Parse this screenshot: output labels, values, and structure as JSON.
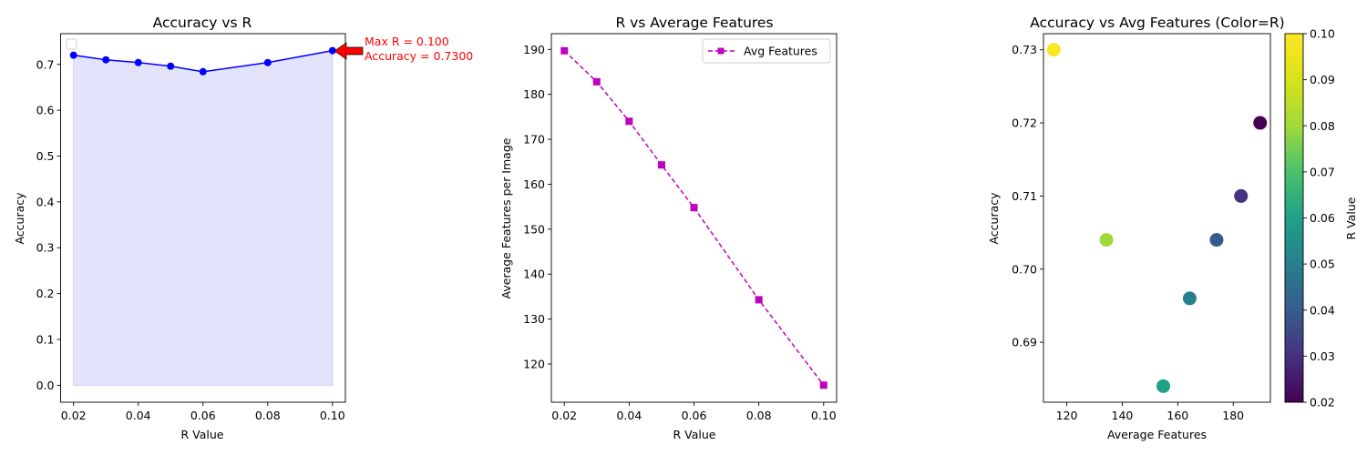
{
  "chart_data": [
    {
      "type": "line",
      "title": "Accuracy vs R",
      "xlabel": "R Value",
      "ylabel": "Accuracy",
      "xlim": [
        0.016,
        0.104
      ],
      "ylim": [
        -0.037,
        0.767
      ],
      "xticks": [
        0.02,
        0.04,
        0.06,
        0.08,
        0.1
      ],
      "xtick_labels": [
        "0.02",
        "0.04",
        "0.06",
        "0.08",
        "0.10"
      ],
      "yticks": [
        0.0,
        0.1,
        0.2,
        0.3,
        0.4,
        0.5,
        0.6,
        0.7
      ],
      "ytick_labels": [
        "0.0",
        "0.1",
        "0.2",
        "0.3",
        "0.4",
        "0.5",
        "0.6",
        "0.7"
      ],
      "x": [
        0.02,
        0.03,
        0.04,
        0.05,
        0.06,
        0.08,
        0.1
      ],
      "y": [
        0.72,
        0.71,
        0.704,
        0.696,
        0.684,
        0.704,
        0.73
      ],
      "fill_under": true,
      "line_color": "#0000ff",
      "fill_color": "#e3e3fc",
      "legend": "top-left (empty)",
      "annotation": {
        "lines": [
          "Max R = 0.100",
          "Accuracy = 0.7300"
        ],
        "point_x": 0.1,
        "point_y": 0.73,
        "color": "#ff0000"
      },
      "grid": false
    },
    {
      "type": "line",
      "title": "R vs Average Features",
      "xlabel": "R Value",
      "ylabel": "Average Features per Image",
      "xlim": [
        0.016,
        0.104
      ],
      "ylim": [
        111.5,
        193.5
      ],
      "xticks": [
        0.02,
        0.04,
        0.06,
        0.08,
        0.1
      ],
      "xtick_labels": [
        "0.02",
        "0.04",
        "0.06",
        "0.08",
        "0.10"
      ],
      "yticks": [
        120,
        130,
        140,
        150,
        160,
        170,
        180,
        190
      ],
      "ytick_labels": [
        "120",
        "130",
        "140",
        "150",
        "160",
        "170",
        "180",
        "190"
      ],
      "series": [
        {
          "name": "Avg Features",
          "x": [
            0.02,
            0.03,
            0.04,
            0.05,
            0.06,
            0.08,
            0.1
          ],
          "y": [
            189.7,
            182.8,
            174.0,
            164.3,
            154.8,
            134.3,
            115.3
          ],
          "color": "#bf00bf",
          "style": "dashed",
          "marker": "square"
        }
      ],
      "legend": "top-right",
      "grid": false
    },
    {
      "type": "scatter",
      "title": "Accuracy vs Avg Features (Color=R)",
      "xlabel": "Average Features",
      "ylabel": "Accuracy",
      "xlim": [
        111.6,
        193.4
      ],
      "ylim": [
        0.6818,
        0.7322
      ],
      "xticks": [
        120,
        140,
        160,
        180
      ],
      "xtick_labels": [
        "120",
        "140",
        "160",
        "180"
      ],
      "yticks": [
        0.69,
        0.7,
        0.71,
        0.72,
        0.73
      ],
      "ytick_labels": [
        "0.69",
        "0.70",
        "0.71",
        "0.72",
        "0.73"
      ],
      "x": [
        189.7,
        182.8,
        174.0,
        164.3,
        154.8,
        134.3,
        115.3
      ],
      "y": [
        0.72,
        0.71,
        0.704,
        0.696,
        0.684,
        0.704,
        0.73
      ],
      "c": [
        0.02,
        0.03,
        0.04,
        0.05,
        0.06,
        0.08,
        0.1
      ],
      "colormap": "viridis",
      "colorbar": {
        "label": "R Value",
        "ticks": [
          0.02,
          0.03,
          0.04,
          0.05,
          0.06,
          0.07,
          0.08,
          0.09,
          0.1
        ],
        "tick_labels": [
          "0.02",
          "0.03",
          "0.04",
          "0.05",
          "0.06",
          "0.07",
          "0.08",
          "0.09",
          "0.10"
        ],
        "range": [
          0.02,
          0.1
        ]
      },
      "grid": false
    }
  ]
}
